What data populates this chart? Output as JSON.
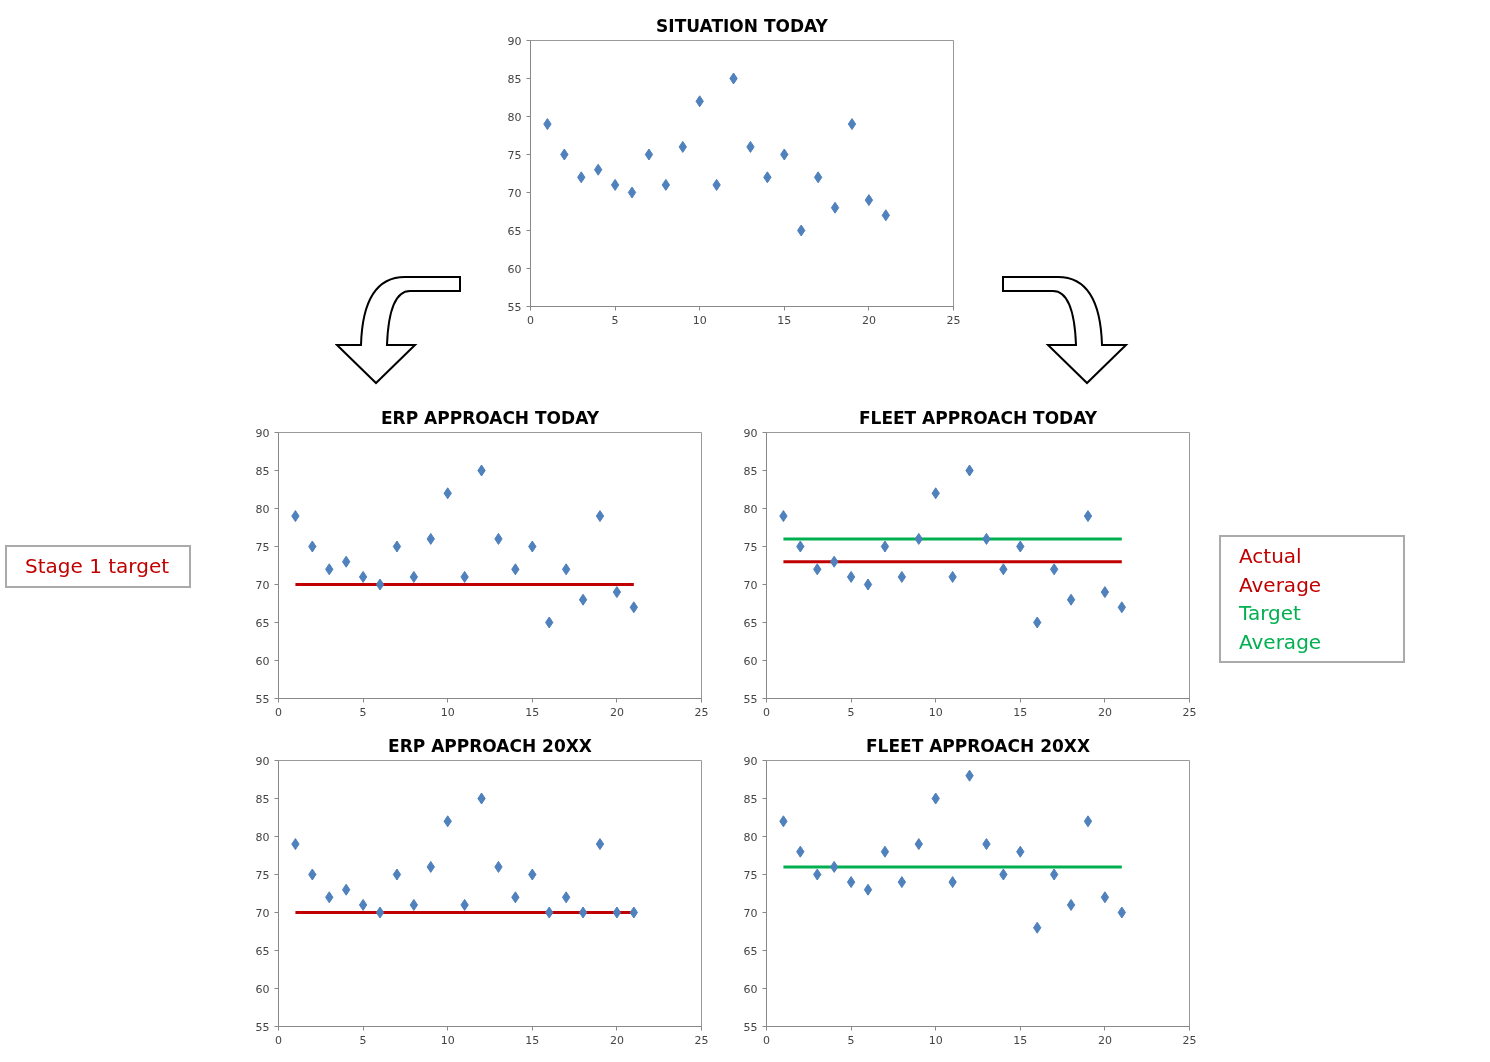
{
  "chart_data": [
    {
      "type": "scatter",
      "title": "SITUATION TODAY",
      "x": [
        1,
        2,
        3,
        4,
        5,
        6,
        7,
        8,
        9,
        10,
        11,
        12,
        13,
        14,
        15,
        16,
        17,
        18,
        19,
        20,
        21
      ],
      "series": [
        {
          "color": "#4f81bd",
          "values": [
            79,
            75,
            72,
            73,
            71,
            70,
            75,
            71,
            76,
            82,
            71,
            85,
            76,
            72,
            75,
            65,
            72,
            68,
            79,
            69,
            67
          ]
        }
      ],
      "marker": "diamond",
      "xlim": [
        0,
        25
      ],
      "ylim": [
        55,
        90
      ],
      "xticks": [
        0,
        5,
        10,
        15,
        20,
        25
      ],
      "yticks": [
        55,
        60,
        65,
        70,
        75,
        80,
        85,
        90
      ],
      "grid": false
    },
    {
      "type": "scatter",
      "title": "ERP APPROACH TODAY",
      "x": [
        1,
        2,
        3,
        4,
        5,
        6,
        7,
        8,
        9,
        10,
        11,
        12,
        13,
        14,
        15,
        16,
        17,
        18,
        19,
        20,
        21
      ],
      "series": [
        {
          "color": "#4f81bd",
          "values": [
            79,
            75,
            72,
            73,
            71,
            70,
            75,
            71,
            76,
            82,
            71,
            85,
            76,
            72,
            75,
            65,
            72,
            68,
            79,
            69,
            67
          ]
        }
      ],
      "marker": "diamond",
      "xlim": [
        0,
        25
      ],
      "ylim": [
        55,
        90
      ],
      "xticks": [
        0,
        5,
        10,
        15,
        20,
        25
      ],
      "yticks": [
        55,
        60,
        65,
        70,
        75,
        80,
        85,
        90
      ],
      "grid": false,
      "ref_lines": [
        {
          "axis": "y",
          "value": 70,
          "label": "Stage 1 target",
          "color": "#c00000"
        }
      ]
    },
    {
      "type": "scatter",
      "title": "FLEET APPROACH TODAY",
      "x": [
        1,
        2,
        3,
        4,
        5,
        6,
        7,
        8,
        9,
        10,
        11,
        12,
        13,
        14,
        15,
        16,
        17,
        18,
        19,
        20,
        21
      ],
      "series": [
        {
          "color": "#4f81bd",
          "values": [
            79,
            75,
            72,
            73,
            71,
            70,
            75,
            71,
            76,
            82,
            71,
            85,
            76,
            72,
            75,
            65,
            72,
            68,
            79,
            69,
            67
          ]
        }
      ],
      "marker": "diamond",
      "xlim": [
        0,
        25
      ],
      "ylim": [
        55,
        90
      ],
      "xticks": [
        0,
        5,
        10,
        15,
        20,
        25
      ],
      "yticks": [
        55,
        60,
        65,
        70,
        75,
        80,
        85,
        90
      ],
      "grid": false,
      "ref_lines": [
        {
          "axis": "y",
          "value": 73,
          "label": "Actual Average",
          "color": "#c00000"
        },
        {
          "axis": "y",
          "value": 76,
          "label": "Target Average",
          "color": "#00b050"
        }
      ]
    },
    {
      "type": "scatter",
      "title": "ERP APPROACH 20XX",
      "x": [
        1,
        2,
        3,
        4,
        5,
        6,
        7,
        8,
        9,
        10,
        11,
        12,
        13,
        14,
        15,
        16,
        17,
        18,
        19,
        20,
        21
      ],
      "series": [
        {
          "color": "#4f81bd",
          "values": [
            79,
            75,
            72,
            73,
            71,
            70,
            75,
            71,
            76,
            82,
            71,
            85,
            76,
            72,
            75,
            70,
            72,
            70,
            79,
            70,
            70
          ]
        }
      ],
      "marker": "diamond",
      "xlim": [
        0,
        25
      ],
      "ylim": [
        55,
        90
      ],
      "xticks": [
        0,
        5,
        10,
        15,
        20,
        25
      ],
      "yticks": [
        55,
        60,
        65,
        70,
        75,
        80,
        85,
        90
      ],
      "grid": false,
      "ref_lines": [
        {
          "axis": "y",
          "value": 70,
          "color": "#c00000"
        }
      ]
    },
    {
      "type": "scatter",
      "title": "FLEET APPROACH 20XX",
      "x": [
        1,
        2,
        3,
        4,
        5,
        6,
        7,
        8,
        9,
        10,
        11,
        12,
        13,
        14,
        15,
        16,
        17,
        18,
        19,
        20,
        21
      ],
      "series": [
        {
          "color": "#4f81bd",
          "values": [
            82,
            78,
            75,
            76,
            74,
            73,
            78,
            74,
            79,
            85,
            74,
            88,
            79,
            75,
            78,
            68,
            75,
            71,
            82,
            72,
            70
          ]
        }
      ],
      "marker": "diamond",
      "xlim": [
        0,
        25
      ],
      "ylim": [
        55,
        90
      ],
      "xticks": [
        0,
        5,
        10,
        15,
        20,
        25
      ],
      "yticks": [
        55,
        60,
        65,
        70,
        75,
        80,
        85,
        90
      ],
      "grid": false,
      "ref_lines": [
        {
          "axis": "y",
          "value": 76,
          "color": "#00b050"
        }
      ]
    }
  ]
}
